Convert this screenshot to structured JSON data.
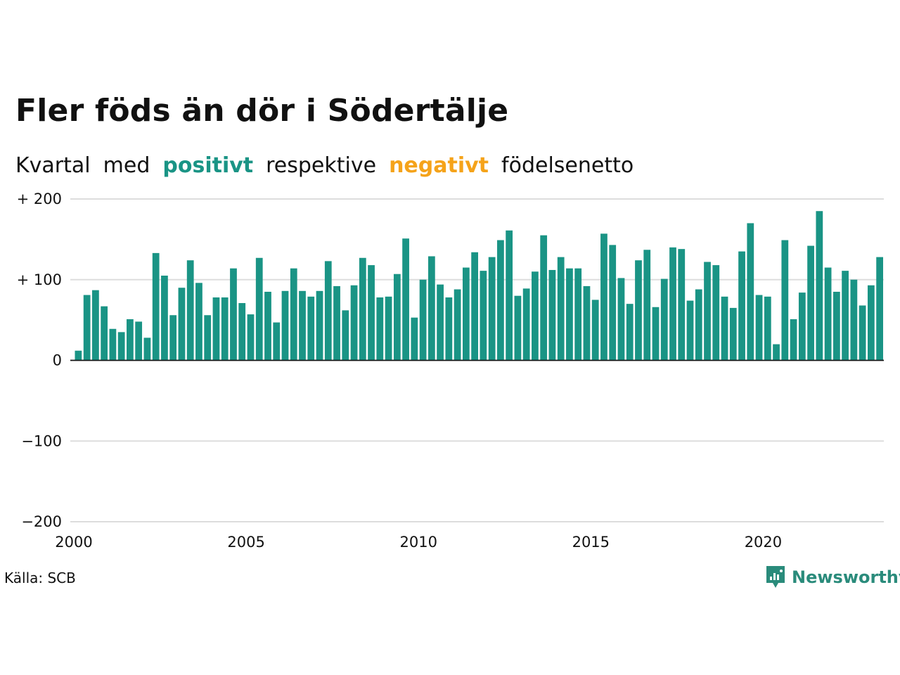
{
  "title": "Fler föds än dör i Södertälje",
  "subtitle": {
    "w1": "Kvartal",
    "w2": "med",
    "positive": "positivt",
    "w3": "respektive",
    "negative": "negativt",
    "w4": "födelsenetto"
  },
  "source": "Källa: SCB",
  "brand": "Newsworthy",
  "colors": {
    "positive": "#1a9485",
    "negative": "#f5a31a",
    "grid": "#dddddd",
    "brand": "#2a8b7b"
  },
  "chart_data": {
    "type": "bar",
    "ylim": [
      -200,
      200
    ],
    "yticks": [
      {
        "value": 200,
        "label": "+ 200"
      },
      {
        "value": 100,
        "label": "+ 100"
      },
      {
        "value": 0,
        "label": "0"
      },
      {
        "value": -100,
        "label": "−100"
      },
      {
        "value": -200,
        "label": "−200"
      }
    ],
    "xticks": [
      {
        "value": 2000,
        "label": "2000"
      },
      {
        "value": 2005,
        "label": "2005"
      },
      {
        "value": 2010,
        "label": "2010"
      },
      {
        "value": 2015,
        "label": "2015"
      },
      {
        "value": 2020,
        "label": "2020"
      }
    ],
    "x_start": 2000,
    "values": [
      12,
      81,
      87,
      67,
      39,
      35,
      51,
      48,
      28,
      133,
      105,
      56,
      90,
      124,
      96,
      56,
      78,
      78,
      114,
      71,
      57,
      127,
      85,
      47,
      86,
      114,
      86,
      79,
      86,
      123,
      92,
      62,
      93,
      127,
      118,
      78,
      79,
      107,
      151,
      53,
      100,
      129,
      94,
      78,
      88,
      115,
      134,
      111,
      128,
      149,
      161,
      80,
      89,
      110,
      155,
      112,
      128,
      114,
      114,
      92,
      75,
      157,
      143,
      102,
      70,
      124,
      137,
      66,
      101,
      140,
      138,
      74,
      88,
      122,
      118,
      79,
      65,
      135,
      170,
      81,
      79,
      20,
      149,
      51,
      84,
      142,
      185,
      115,
      85,
      111,
      100,
      68,
      93,
      128
    ]
  }
}
